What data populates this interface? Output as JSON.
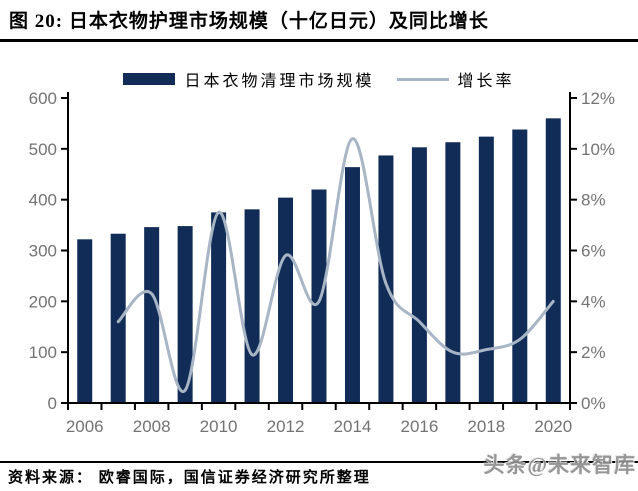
{
  "page": {
    "title": "图 20:  日本衣物护理市场规模（十亿日元）及同比增长",
    "source_note": "资料来源：  欧睿国际，国信证券经济研究所整理",
    "watermark": "头条@未来智库"
  },
  "chart_data": {
    "type": "bar+line combo",
    "title": "日本衣物护理市场规模（十亿日元）及同比增长",
    "categories": [
      "2006",
      "2007",
      "2008",
      "2009",
      "2010",
      "2011",
      "2012",
      "2013",
      "2014",
      "2015",
      "2016",
      "2017",
      "2018",
      "2019",
      "2020"
    ],
    "series": [
      {
        "name": "日本衣物清理市场规模",
        "type": "bar",
        "axis": "left",
        "unit": "十亿日元",
        "color": "#112C56",
        "values": [
          322,
          333,
          346,
          348,
          375,
          381,
          404,
          420,
          464,
          487,
          503,
          513,
          524,
          538,
          560
        ]
      },
      {
        "name": "增长率",
        "type": "line",
        "axis": "right",
        "unit": "%",
        "color": "#A7B5C5",
        "values": [
          null,
          3.2,
          4.3,
          0.5,
          7.5,
          1.9,
          5.8,
          4.0,
          10.4,
          4.7,
          3.2,
          2.0,
          2.1,
          2.5,
          4.0
        ]
      }
    ],
    "left_axis": {
      "min": 0,
      "max": 600,
      "step": 100,
      "tick_labels": [
        "0",
        "100",
        "200",
        "300",
        "400",
        "500",
        "600"
      ]
    },
    "right_axis": {
      "min": 0,
      "max": 12,
      "step": 2,
      "tick_labels": [
        "0%",
        "2%",
        "4%",
        "6%",
        "8%",
        "10%",
        "12%"
      ]
    },
    "x_tick_labels": [
      "2006",
      "2008",
      "2010",
      "2012",
      "2014",
      "2016",
      "2018",
      "2020"
    ],
    "legend_position": "top",
    "grid": false,
    "line_smoothed": true,
    "colors": {
      "bar": "#112C56",
      "line": "#A7B5C5",
      "axis": "#000000",
      "axis_text": "#737373"
    }
  }
}
